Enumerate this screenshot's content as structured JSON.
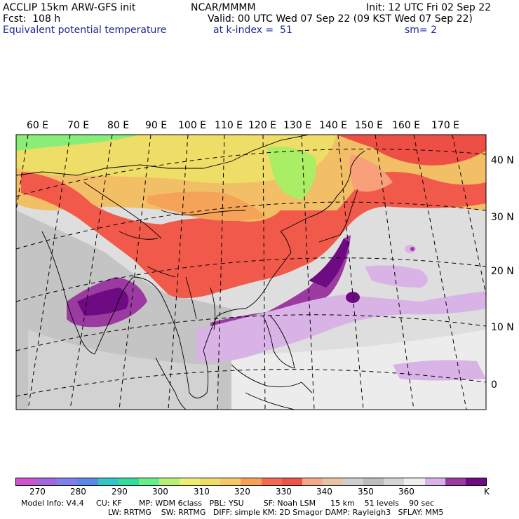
{
  "header": {
    "model": "ACCLIP 15km ARW-GFS init",
    "center": "NCAR/MMMM",
    "init": "Init: 12 UTC Fri 02 Sep 22",
    "fcst": "Fcst:  108 h",
    "valid": "Valid: 00 UTC Wed 07 Sep 22 (09 KST Wed 07 Sep 22)",
    "field": "Equivalent potential temperature",
    "level": "at k-index =  51",
    "smooth": "sm= 2"
  },
  "map": {
    "lon_labels": [
      "60 E",
      "70 E",
      "80 E",
      "90 E",
      "100 E",
      "110 E",
      "120 E",
      "130 E",
      "140 E",
      "150 E",
      "160 E",
      "170 E"
    ],
    "lat_labels": [
      "40 N",
      "30 N",
      "20 N",
      "10 N",
      "0"
    ]
  },
  "colorbar": {
    "unit": "K",
    "tick_labels": [
      "270",
      "280",
      "290",
      "300",
      "310",
      "320",
      "330",
      "340",
      "350",
      "360"
    ],
    "colors": [
      "#cc55cc",
      "#a066dd",
      "#7f7fee",
      "#5a8ae6",
      "#33c4c4",
      "#33dd99",
      "#66ee88",
      "#bbee77",
      "#eeee77",
      "#eedd66",
      "#f6c86a",
      "#f7a05a",
      "#f26a52",
      "#ef5248",
      "#f6a88a",
      "#e9c3a8",
      "#cfcfcf",
      "#bdbdbd",
      "#d5d5d5",
      "#eeeeee",
      "#d9b3e6",
      "#9b3aa0",
      "#6e0a82"
    ]
  },
  "footer": {
    "line1": "Model Info: V4.4     CU: KF       MP: WDM 6class   PBL: YSU        SF: Noah LSM      15 km    51 levels    90 sec",
    "line2": "LW: RRTMG    SW: RRTMG   DIFF: simple KM: 2D Smagor DAMP: Rayleigh3   SFLAY: MM5"
  }
}
